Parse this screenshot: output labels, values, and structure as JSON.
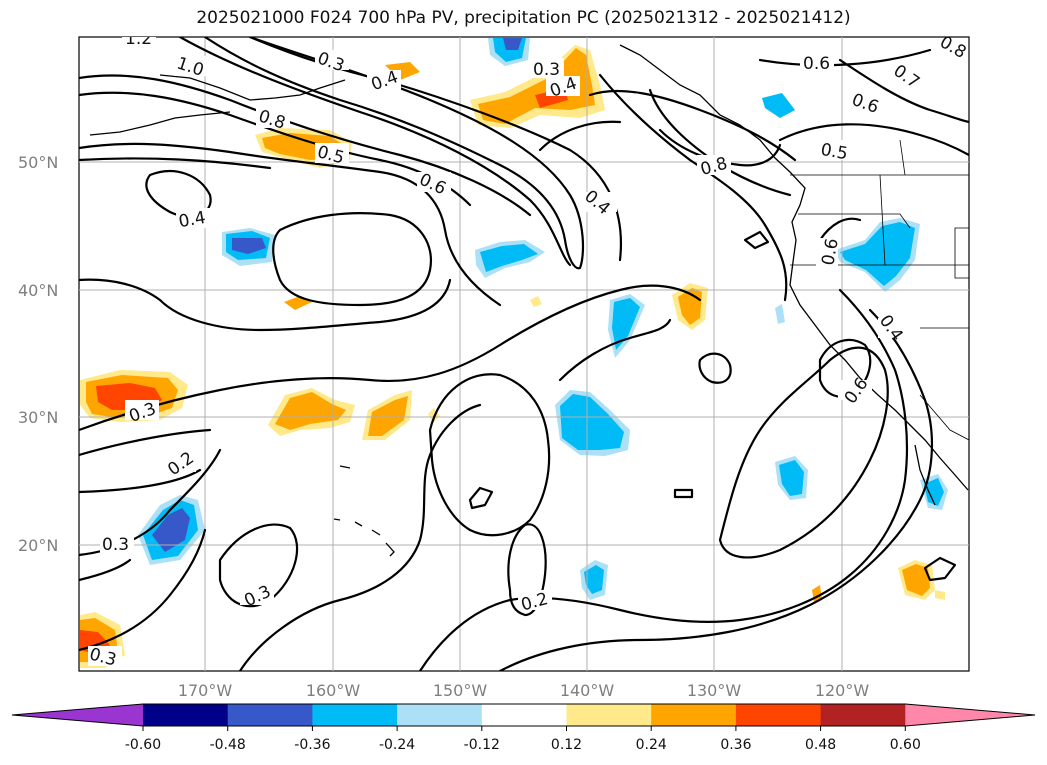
{
  "title": "2025021000 F024 700 hPa PV, precipitation PC (2025021312 - 2025021412)",
  "map": {
    "lat_ticks": [
      "50°N",
      "40°N",
      "30°N",
      "20°N"
    ],
    "lon_ticks": [
      "170°W",
      "160°W",
      "150°W",
      "140°W",
      "130°W",
      "120°W"
    ],
    "gridlines": true
  },
  "contour_labels": [
    "1.2",
    "1.0",
    "0.8",
    "0.5",
    "0.6",
    "0.3",
    "0.4",
    "0.3",
    "0.4",
    "0.4",
    "0.6",
    "0.5",
    "0.8",
    "0.7",
    "0.8",
    "0.6",
    "0.4",
    "0.6",
    "0.3",
    "0.2",
    "0.3",
    "0.3",
    "0.2",
    "0.3",
    "0.6",
    "0.4"
  ],
  "colorbar": {
    "ticks": [
      "-0.60",
      "-0.48",
      "-0.36",
      "-0.24",
      "-0.12",
      "0.12",
      "0.24",
      "0.36",
      "0.48",
      "0.60"
    ],
    "colors": [
      "#9b35d2",
      "#000088",
      "#3658c9",
      "#00bbf5",
      "#abe0f7",
      "#ffffff",
      "#ffe98a",
      "#ffa500",
      "#ff4500",
      "#b22222",
      "#ff88aa"
    ]
  }
}
